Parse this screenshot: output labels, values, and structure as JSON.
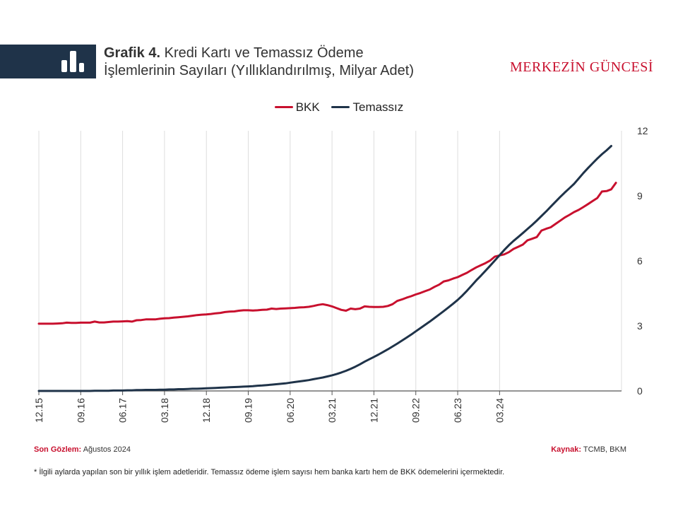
{
  "header": {
    "title_bold": "Grafik 4.",
    "title_line1": "Kredi Kartı ve Temassız Ödeme",
    "title_line2": "İşlemlerinin Sayıları (Yıllıklandırılmış, Milyar Adet)",
    "brand": "MERKEZİN GÜNCESİ",
    "icon": "bar-chart-icon"
  },
  "colors": {
    "header_band": "#1f3349",
    "bkk": "#c8102e",
    "temassiz": "#1f3349",
    "grid": "#dddddd",
    "accent": "#c8102e"
  },
  "footer": {
    "last_obs_label": "Son Gözlem:",
    "last_obs_value": "Ağustos 2024",
    "source_label": "Kaynak:",
    "source_value": "TCMB, BKM",
    "footnote": "* İlgili aylarda yapılan son bir yıllık işlem adetleridir. Temassız ödeme işlem sayısı hem banka kartı hem de BKK ödemelerini içermektedir."
  },
  "chart_data": {
    "type": "line",
    "x_ticks": [
      "12.15",
      "09.16",
      "06.17",
      "03.18",
      "12.18",
      "09.19",
      "06.20",
      "03.21",
      "12.21",
      "09.22",
      "06.23",
      "03.24"
    ],
    "x_start": "12.15",
    "x_end": "08.24",
    "y_ticks": [
      0,
      3,
      6,
      9,
      12
    ],
    "ylim": [
      0,
      12
    ],
    "y_axis_side": "right",
    "grid": "vertical",
    "legend_position": "top-center",
    "series": [
      {
        "name": "BKK",
        "color": "#c8102e",
        "values": [
          3.1,
          3.1,
          3.1,
          3.1,
          3.11,
          3.12,
          3.15,
          3.14,
          3.14,
          3.15,
          3.15,
          3.15,
          3.2,
          3.16,
          3.16,
          3.18,
          3.2,
          3.2,
          3.21,
          3.22,
          3.2,
          3.26,
          3.27,
          3.3,
          3.3,
          3.3,
          3.33,
          3.35,
          3.36,
          3.38,
          3.4,
          3.42,
          3.44,
          3.47,
          3.5,
          3.52,
          3.53,
          3.55,
          3.58,
          3.6,
          3.64,
          3.66,
          3.67,
          3.7,
          3.72,
          3.72,
          3.71,
          3.72,
          3.74,
          3.75,
          3.8,
          3.78,
          3.8,
          3.81,
          3.82,
          3.83,
          3.85,
          3.86,
          3.88,
          3.92,
          3.97,
          4.0,
          3.96,
          3.9,
          3.82,
          3.74,
          3.7,
          3.8,
          3.77,
          3.8,
          3.9,
          3.88,
          3.87,
          3.87,
          3.88,
          3.92,
          4.0,
          4.15,
          4.22,
          4.3,
          4.37,
          4.45,
          4.52,
          4.6,
          4.68,
          4.8,
          4.9,
          5.05,
          5.1,
          5.18,
          5.25,
          5.35,
          5.45,
          5.58,
          5.7,
          5.8,
          5.9,
          6.02,
          6.2,
          6.25,
          6.3,
          6.4,
          6.55,
          6.65,
          6.75,
          6.95,
          7.02,
          7.1,
          7.4,
          7.48,
          7.55,
          7.7,
          7.85,
          8.0,
          8.12,
          8.25,
          8.35,
          8.48,
          8.62,
          8.76,
          8.9,
          9.2,
          9.22,
          9.3,
          9.6
        ]
      },
      {
        "name": "Temassız",
        "color": "#1f3349",
        "values": [
          0.0,
          0.0,
          0.0,
          0.0,
          0.0,
          0.0,
          0.0,
          0.0,
          0.0,
          0.0,
          0.0,
          0.0,
          0.01,
          0.01,
          0.01,
          0.01,
          0.02,
          0.02,
          0.02,
          0.03,
          0.03,
          0.04,
          0.04,
          0.05,
          0.05,
          0.05,
          0.06,
          0.06,
          0.07,
          0.07,
          0.08,
          0.08,
          0.09,
          0.1,
          0.1,
          0.11,
          0.12,
          0.13,
          0.14,
          0.15,
          0.16,
          0.17,
          0.18,
          0.19,
          0.2,
          0.21,
          0.22,
          0.24,
          0.25,
          0.27,
          0.29,
          0.31,
          0.33,
          0.35,
          0.38,
          0.41,
          0.44,
          0.47,
          0.5,
          0.54,
          0.58,
          0.62,
          0.67,
          0.72,
          0.78,
          0.85,
          0.93,
          1.02,
          1.12,
          1.23,
          1.35,
          1.46,
          1.57,
          1.68,
          1.8,
          1.92,
          2.05,
          2.18,
          2.32,
          2.46,
          2.6,
          2.75,
          2.9,
          3.05,
          3.2,
          3.36,
          3.52,
          3.68,
          3.85,
          4.02,
          4.2,
          4.4,
          4.62,
          4.86,
          5.1,
          5.32,
          5.55,
          5.78,
          6.02,
          6.26,
          6.5,
          6.72,
          6.92,
          7.1,
          7.28,
          7.47,
          7.66,
          7.86,
          8.07,
          8.28,
          8.5,
          8.72,
          8.94,
          9.15,
          9.35,
          9.55,
          9.8,
          10.05,
          10.28,
          10.5,
          10.72,
          10.92,
          11.1,
          11.3
        ]
      }
    ]
  }
}
